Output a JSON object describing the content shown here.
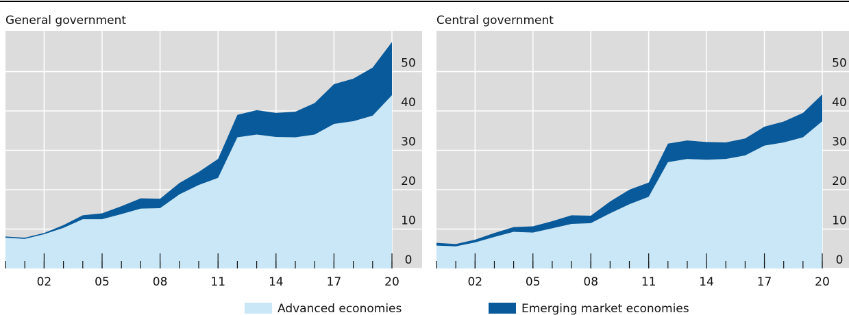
{
  "chart_data": [
    {
      "type": "stacked-area",
      "title": "General government",
      "x": [
        2000,
        2001,
        2002,
        2003,
        2004,
        2005,
        2006,
        2007,
        2008,
        2009,
        2010,
        2011,
        2012,
        2013,
        2014,
        2015,
        2016,
        2017,
        2018,
        2019,
        2020
      ],
      "xlim": [
        2000,
        2020
      ],
      "xticks": [
        {
          "value": 2002,
          "label": "02"
        },
        {
          "value": 2005,
          "label": "05"
        },
        {
          "value": 2008,
          "label": "08"
        },
        {
          "value": 2011,
          "label": "11"
        },
        {
          "value": 2014,
          "label": "14"
        },
        {
          "value": 2017,
          "label": "17"
        },
        {
          "value": 2020,
          "label": "20"
        }
      ],
      "ylim": [
        0,
        60
      ],
      "yticks": [
        0,
        10,
        20,
        30,
        40,
        50
      ],
      "grid": true,
      "series": [
        {
          "name": "Advanced economies",
          "color": "#c9e7f6",
          "values": [
            7.8,
            7.5,
            8.7,
            10.3,
            12.5,
            12.5,
            13.8,
            15.2,
            15.3,
            18.8,
            21.2,
            23,
            33.3,
            34,
            33.4,
            33.3,
            34,
            36.7,
            37.4,
            38.8,
            44
          ]
        },
        {
          "name": "Emerging market economies",
          "color": "#085a9b",
          "values": [
            0.3,
            0.3,
            0.3,
            0.7,
            1,
            1.5,
            2,
            2.6,
            2.4,
            2.9,
            3.3,
            4.8,
            5.7,
            6.2,
            6.1,
            6.5,
            8,
            10.1,
            10.8,
            12.2,
            13.5
          ]
        }
      ]
    },
    {
      "type": "stacked-area",
      "title": "Central government",
      "x": [
        2000,
        2001,
        2002,
        2003,
        2004,
        2005,
        2006,
        2007,
        2008,
        2009,
        2010,
        2011,
        2012,
        2013,
        2014,
        2015,
        2016,
        2017,
        2018,
        2019,
        2020
      ],
      "xlim": [
        2000,
        2020
      ],
      "xticks": [
        {
          "value": 2002,
          "label": "02"
        },
        {
          "value": 2005,
          "label": "05"
        },
        {
          "value": 2008,
          "label": "08"
        },
        {
          "value": 2011,
          "label": "11"
        },
        {
          "value": 2014,
          "label": "14"
        },
        {
          "value": 2017,
          "label": "17"
        },
        {
          "value": 2020,
          "label": "20"
        }
      ],
      "ylim": [
        0,
        60
      ],
      "yticks": [
        0,
        10,
        20,
        30,
        40,
        50
      ],
      "grid": true,
      "series": [
        {
          "color": "#c9e7f6",
          "values": [
            5.8,
            5.6,
            6.6,
            8,
            9.3,
            9.1,
            10.2,
            11.3,
            11.5,
            14,
            16.3,
            18.2,
            27,
            27.8,
            27.6,
            27.8,
            28.7,
            31.2,
            32,
            33.3,
            37.4
          ]
        },
        {
          "color": "#085a9b",
          "values": [
            0.7,
            0.6,
            0.7,
            1,
            1.2,
            1.6,
            1.8,
            2.2,
            1.9,
            3,
            3.7,
            3.6,
            4.7,
            4.7,
            4.5,
            4.2,
            4.3,
            4.8,
            5.3,
            6.2,
            6.8
          ]
        }
      ]
    }
  ]
}
